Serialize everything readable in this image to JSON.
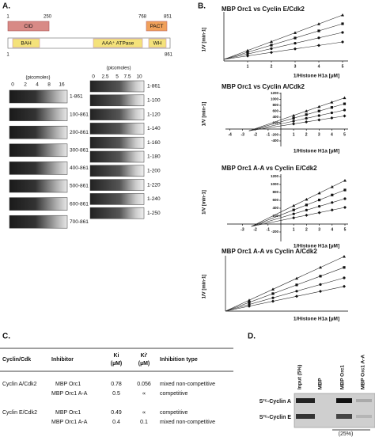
{
  "panel_a": {
    "label": "A.",
    "domain_map": {
      "top_positions": [
        1,
        250,
        768,
        851
      ],
      "top_domains": [
        "CID",
        "PACT"
      ],
      "domains": [
        "BAH",
        "AAA⁺ ATPase",
        "WH"
      ],
      "ends": [
        1,
        861
      ]
    },
    "deletion_gel": {
      "unit": "(picomoles)",
      "amounts": [
        0,
        2,
        4,
        8,
        16
      ],
      "constructs": [
        "1-861",
        "100-861",
        "200-861",
        "300-861",
        "400-861",
        "500-861",
        "600-861",
        "700-861"
      ]
    },
    "truncation_gel": {
      "unit": "(picomoles)",
      "amounts": [
        0,
        2.5,
        5,
        7.5,
        10
      ],
      "constructs": [
        "1-861",
        "1-100",
        "1-120",
        "1-140",
        "1-160",
        "1-180",
        "1-200",
        "1-220",
        "1-240",
        "1-250"
      ]
    }
  },
  "panel_b": {
    "label": "B.",
    "plots": [
      {
        "title": "MBP Orc1 vs Cyclin E/Cdk2",
        "y_label": "1/V [min-1]",
        "x_label": "1/Histone H1a [µM]",
        "xticks": [
          1,
          2,
          3,
          4,
          5
        ]
      },
      {
        "title": "MBP Orc1 vs Cyclin A/Cdk2",
        "y_label": "1/V [min-1]",
        "x_label": "1/Histone H1a [µM]",
        "xticks": [
          -4,
          -3,
          -2,
          -1,
          1,
          2,
          3,
          4,
          5
        ],
        "yticks": [
          1200,
          1000,
          800,
          600,
          400,
          200,
          -200,
          -400
        ]
      },
      {
        "title": "MBP Orc1 A-A vs Cyclin E/Cdk2",
        "y_label": "1/V [min-1]",
        "x_label": "1/Histone H1a [µM]",
        "xticks": [
          -3,
          -2,
          -1,
          1,
          2,
          3,
          4,
          5
        ],
        "yticks": [
          1200,
          1000,
          800,
          600,
          400,
          200,
          -200
        ]
      },
      {
        "title": "MBP Orc1 A-A vs Cyclin A/Cdk2",
        "y_label": "1/V [min-1]",
        "x_label": "1/Histone H1a [µM]"
      }
    ]
  },
  "panel_c": {
    "label": "C.",
    "columns": [
      "Cyclin/Cdk",
      "Inhibitor",
      {
        "name": "Ki",
        "unit": "(µM)"
      },
      {
        "name": "Ki'",
        "unit": "(µM)"
      },
      "Inhibition type"
    ],
    "groups": [
      {
        "cyclin": "Cyclin A/Cdk2",
        "rows": [
          [
            "MBP Orc1",
            0.78,
            0.056,
            "mixed non-competitive"
          ],
          [
            "MBP Orc1 A-A",
            0.5,
            "∝",
            "competitive"
          ]
        ]
      },
      {
        "cyclin": "Cyclin E/Cdk2",
        "rows": [
          [
            "MBP Orc1",
            0.49,
            "∝",
            "competitive"
          ],
          [
            "MBP Orc1 A-A",
            0.4,
            0.1,
            "mixed non-competitive"
          ]
        ]
      }
    ]
  },
  "panel_d": {
    "label": "D.",
    "lanes": [
      "Input (5%)",
      "MBP",
      "MBP Orc1",
      "MBP Orc1 A-A"
    ],
    "rows": [
      "S³⁵-Cyclin A",
      "S³⁵-Cyclin E"
    ],
    "note": "(25%)"
  }
}
